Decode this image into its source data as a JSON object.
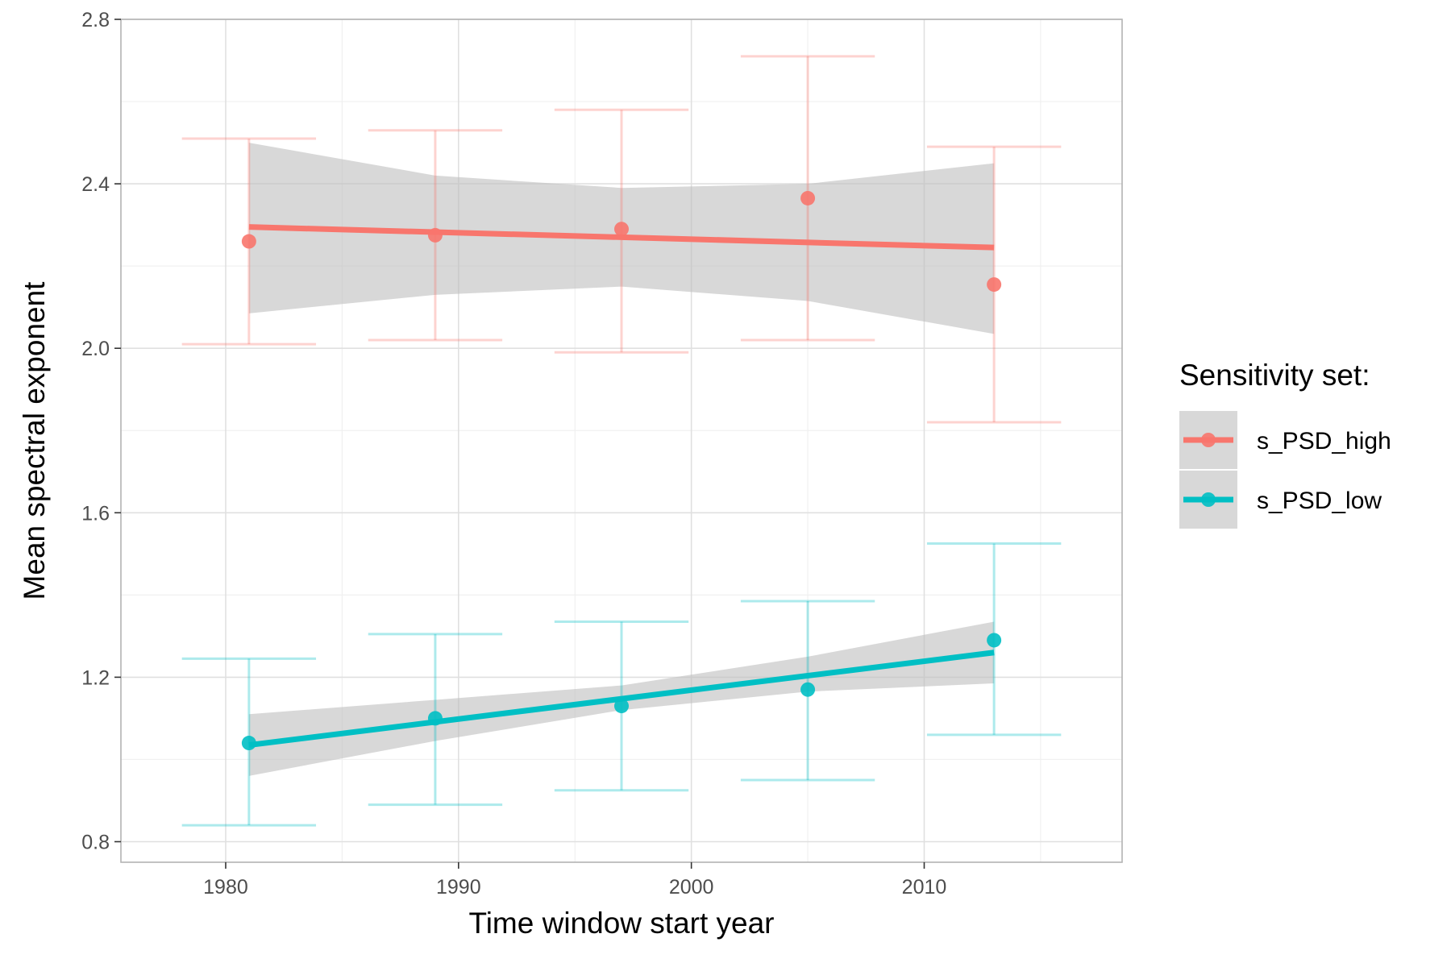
{
  "chart_data": {
    "type": "line",
    "xlabel": "Time window start year",
    "ylabel": "Mean spectral exponent",
    "xlim": [
      1975.5,
      2018.5
    ],
    "ylim": [
      0.75,
      2.8
    ],
    "x_ticks": [
      1980,
      1990,
      2000,
      2010
    ],
    "y_ticks": [
      0.8,
      1.2,
      1.6,
      2.0,
      2.4,
      2.8
    ],
    "x_tick_labels": [
      "1980",
      "1990",
      "2000",
      "2010"
    ],
    "y_tick_labels": [
      "0.8",
      "1.2",
      "1.6",
      "2.0",
      "2.4",
      "2.8"
    ],
    "grid": true,
    "legend": {
      "title": "Sensitivity set:",
      "position": "right"
    },
    "series": [
      {
        "name": "s_PSD_high",
        "color": "#F8766D",
        "x": [
          1981,
          1989,
          1997,
          2005,
          2013
        ],
        "y": [
          2.26,
          2.275,
          2.29,
          2.365,
          2.155
        ],
        "error_low": [
          2.01,
          2.02,
          1.99,
          2.02,
          1.82
        ],
        "error_high": [
          2.51,
          2.53,
          2.58,
          2.71,
          2.49
        ],
        "fit": {
          "x": [
            1981,
            2013
          ],
          "y": [
            2.295,
            2.245
          ]
        },
        "fit_ci": {
          "x": [
            1981,
            1989,
            1997,
            2005,
            2013
          ],
          "low": [
            2.085,
            2.13,
            2.15,
            2.115,
            2.035
          ],
          "high": [
            2.5,
            2.42,
            2.39,
            2.4,
            2.45
          ]
        }
      },
      {
        "name": "s_PSD_low",
        "color": "#00BFC4",
        "x": [
          1981,
          1989,
          1997,
          2005,
          2013
        ],
        "y": [
          1.04,
          1.1,
          1.13,
          1.17,
          1.29
        ],
        "error_low": [
          0.84,
          0.89,
          0.925,
          0.95,
          1.06
        ],
        "error_high": [
          1.245,
          1.305,
          1.335,
          1.385,
          1.525
        ],
        "fit": {
          "x": [
            1981,
            2013
          ],
          "y": [
            1.035,
            1.26
          ]
        },
        "fit_ci": {
          "x": [
            1981,
            1989,
            1997,
            2005,
            2013
          ],
          "low": [
            0.96,
            1.045,
            1.12,
            1.165,
            1.185
          ],
          "high": [
            1.11,
            1.145,
            1.18,
            1.25,
            1.335
          ]
        }
      }
    ],
    "ci_color": "#BEBEBE"
  }
}
